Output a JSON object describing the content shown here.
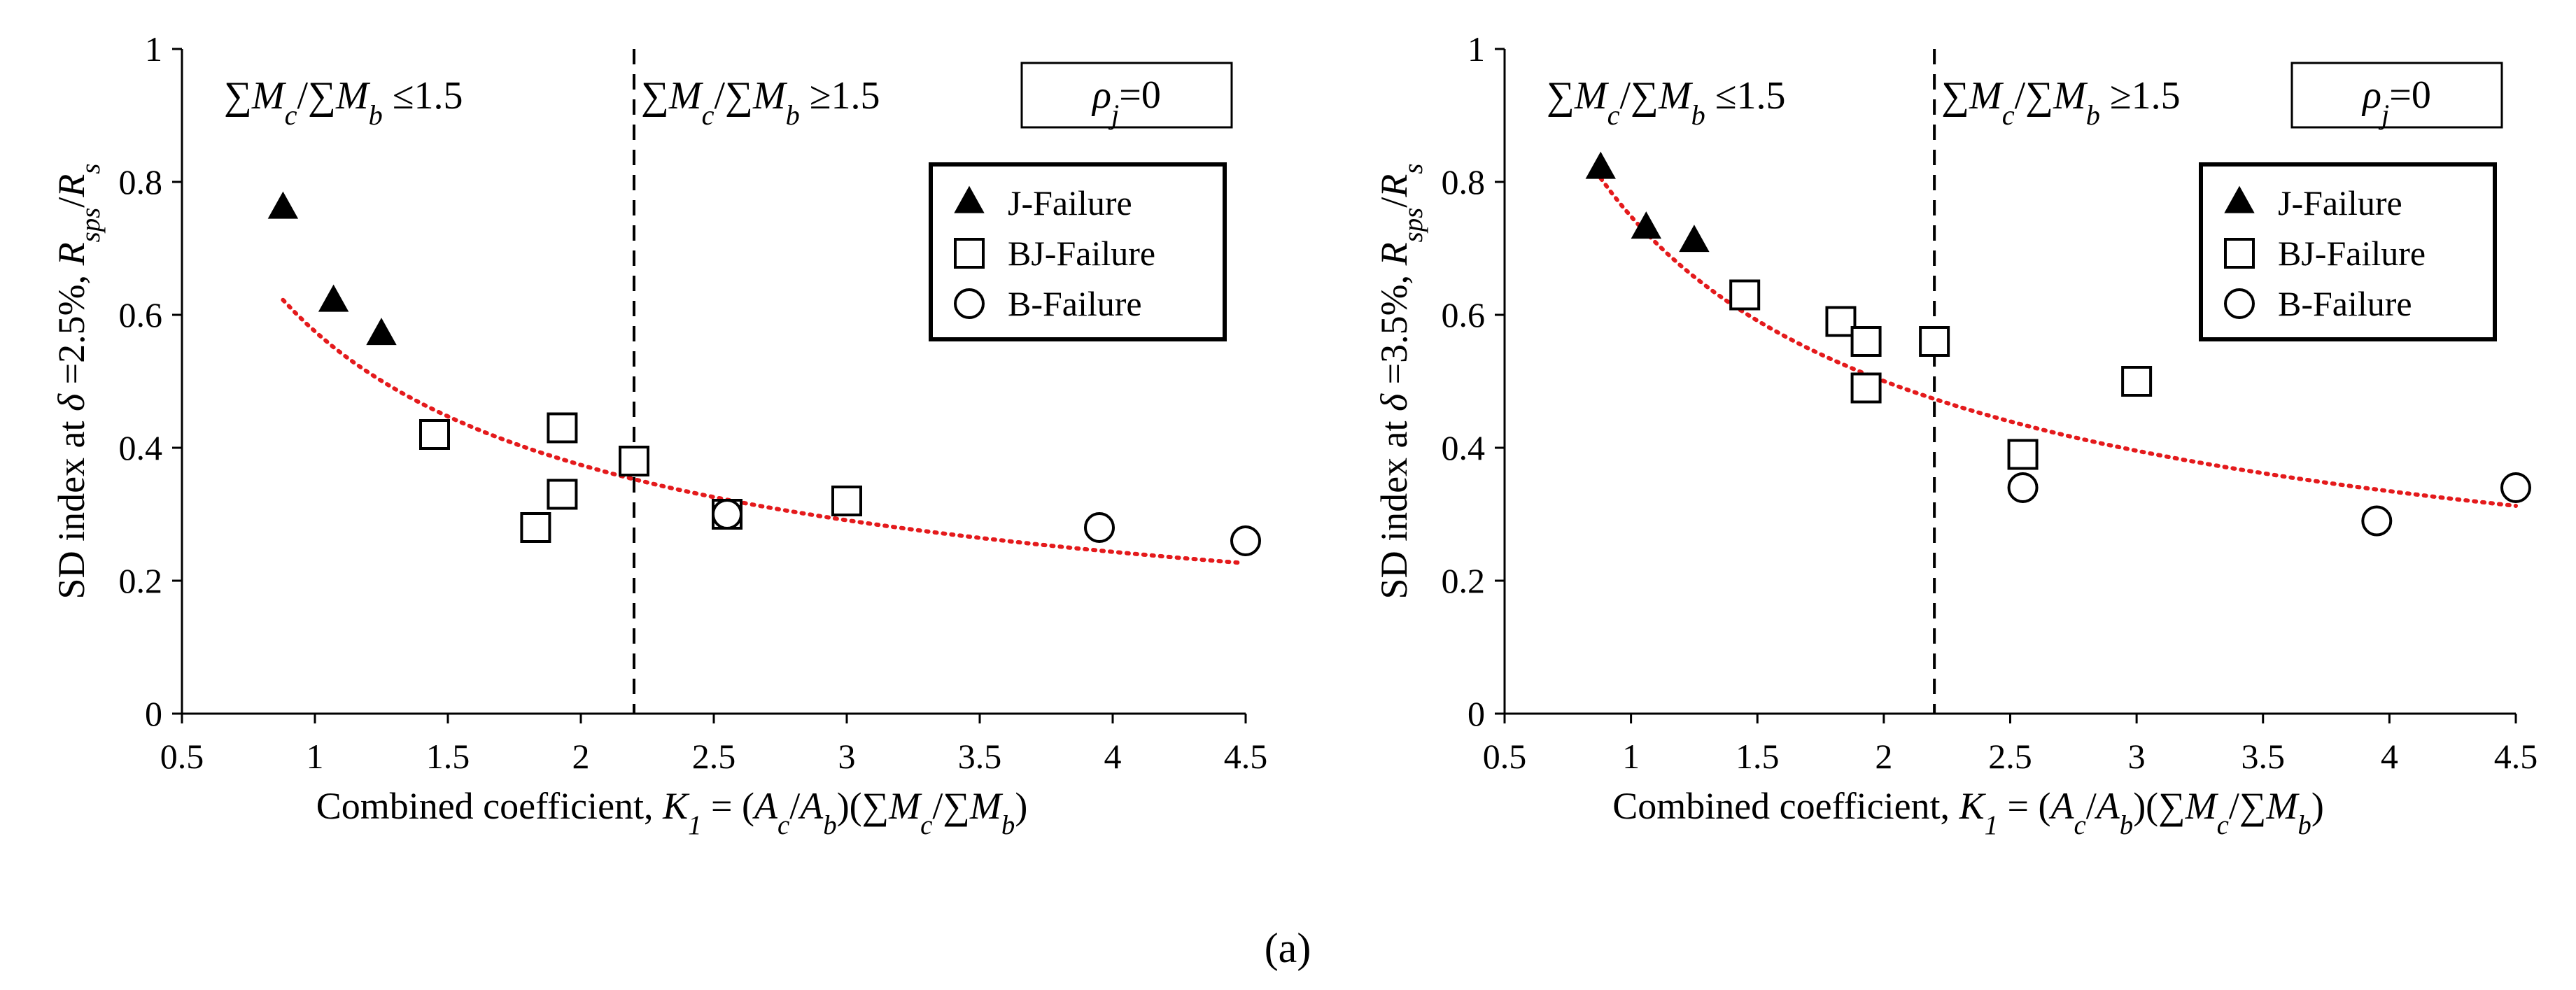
{
  "caption": "(a)",
  "chart_data": [
    {
      "type": "scatter",
      "ylabel_parts": [
        "SD index at ",
        "δ",
        " =2.5%, ",
        "R",
        "sps",
        "/",
        "R",
        "s"
      ],
      "xlabel_parts": [
        "Combined coefficient, ",
        "K",
        "1",
        " = (",
        "A",
        "c",
        "/",
        "A",
        "b",
        ")(∑",
        "M",
        "c",
        "/∑",
        "M",
        "b",
        ")"
      ],
      "xlim": [
        0.5,
        4.5
      ],
      "ylim": [
        0,
        1
      ],
      "xticks": [
        0.5,
        1,
        1.5,
        2,
        2.5,
        3,
        3.5,
        4,
        4.5
      ],
      "xtick_labels": [
        "0.5",
        "1",
        "1.5",
        "2",
        "2.5",
        "3",
        "3.5",
        "4",
        "4.5"
      ],
      "yticks": [
        0,
        0.2,
        0.4,
        0.6,
        0.8,
        1
      ],
      "ytick_labels": [
        "0",
        "0.2",
        "0.4",
        "0.6",
        "0.8",
        "1"
      ],
      "divider_x": 2.2,
      "annotations": {
        "left_region": [
          "∑",
          "M",
          "c",
          "/∑",
          "M",
          "b",
          " ≤1.5"
        ],
        "right_region": [
          "∑",
          "M",
          "c",
          "/∑",
          "M",
          "b",
          " ≥1.5"
        ],
        "rho_box": [
          "ρ",
          "j",
          "=0"
        ]
      },
      "legend": [
        {
          "label": "J-Failure",
          "marker": "triangle"
        },
        {
          "label": "BJ-Failure",
          "marker": "square"
        },
        {
          "label": "B-Failure",
          "marker": "circle"
        }
      ],
      "series": [
        {
          "name": "J-Failure",
          "marker": "triangle",
          "x": [
            0.88,
            1.07,
            1.25
          ],
          "y": [
            0.76,
            0.62,
            0.57
          ]
        },
        {
          "name": "BJ-Failure",
          "marker": "square",
          "x": [
            1.45,
            1.83,
            1.93,
            1.93,
            2.2,
            2.55,
            3.0
          ],
          "y": [
            0.42,
            0.28,
            0.43,
            0.33,
            0.38,
            0.3,
            0.32
          ]
        },
        {
          "name": "B-Failure",
          "marker": "circle",
          "x": [
            2.55,
            3.95,
            4.5
          ],
          "y": [
            0.3,
            0.28,
            0.26
          ]
        }
      ],
      "trendline": {
        "type": "power",
        "a": 0.575,
        "b": -0.62,
        "x_range": [
          0.88,
          4.47
        ],
        "color": "#e41a1c"
      }
    },
    {
      "type": "scatter",
      "ylabel_parts": [
        "SD index at ",
        "δ",
        " =3.5%, ",
        "R",
        "sps",
        "/",
        "R",
        "s"
      ],
      "xlabel_parts": [
        "Combined coefficient, ",
        "K",
        "1",
        " = (",
        "A",
        "c",
        "/",
        "A",
        "b",
        ")(∑",
        "M",
        "c",
        "/∑",
        "M",
        "b",
        ")"
      ],
      "xlim": [
        0.5,
        4.5
      ],
      "ylim": [
        0,
        1
      ],
      "xticks": [
        0.5,
        1,
        1.5,
        2,
        2.5,
        3,
        3.5,
        4,
        4.5
      ],
      "xtick_labels": [
        "0.5",
        "1",
        "1.5",
        "2",
        "2.5",
        "3",
        "3.5",
        "4",
        "4.5"
      ],
      "yticks": [
        0,
        0.2,
        0.4,
        0.6,
        0.8,
        1
      ],
      "ytick_labels": [
        "0",
        "0.2",
        "0.4",
        "0.6",
        "0.8",
        "1"
      ],
      "divider_x": 2.2,
      "annotations": {
        "left_region": [
          "∑",
          "M",
          "c",
          "/∑",
          "M",
          "b",
          " ≤1.5"
        ],
        "right_region": [
          "∑",
          "M",
          "c",
          "/∑",
          "M",
          "b",
          " ≥1.5"
        ],
        "rho_box": [
          "ρ",
          "j",
          "=0"
        ]
      },
      "legend": [
        {
          "label": "J-Failure",
          "marker": "triangle"
        },
        {
          "label": "BJ-Failure",
          "marker": "square"
        },
        {
          "label": "B-Failure",
          "marker": "circle"
        }
      ],
      "series": [
        {
          "name": "J-Failure",
          "marker": "triangle",
          "x": [
            0.88,
            1.06,
            1.25
          ],
          "y": [
            0.82,
            0.73,
            0.71
          ]
        },
        {
          "name": "BJ-Failure",
          "marker": "square",
          "x": [
            1.45,
            1.83,
            1.93,
            1.93,
            2.2,
            2.55,
            3.0
          ],
          "y": [
            0.63,
            0.59,
            0.56,
            0.49,
            0.56,
            0.39,
            0.5
          ]
        },
        {
          "name": "B-Failure",
          "marker": "circle",
          "x": [
            2.55,
            3.95,
            4.5
          ],
          "y": [
            0.34,
            0.29,
            0.34
          ]
        }
      ],
      "trendline": {
        "type": "power",
        "a": 0.748,
        "b": -0.58,
        "x_range": [
          0.88,
          4.5
        ],
        "color": "#e41a1c"
      }
    }
  ]
}
